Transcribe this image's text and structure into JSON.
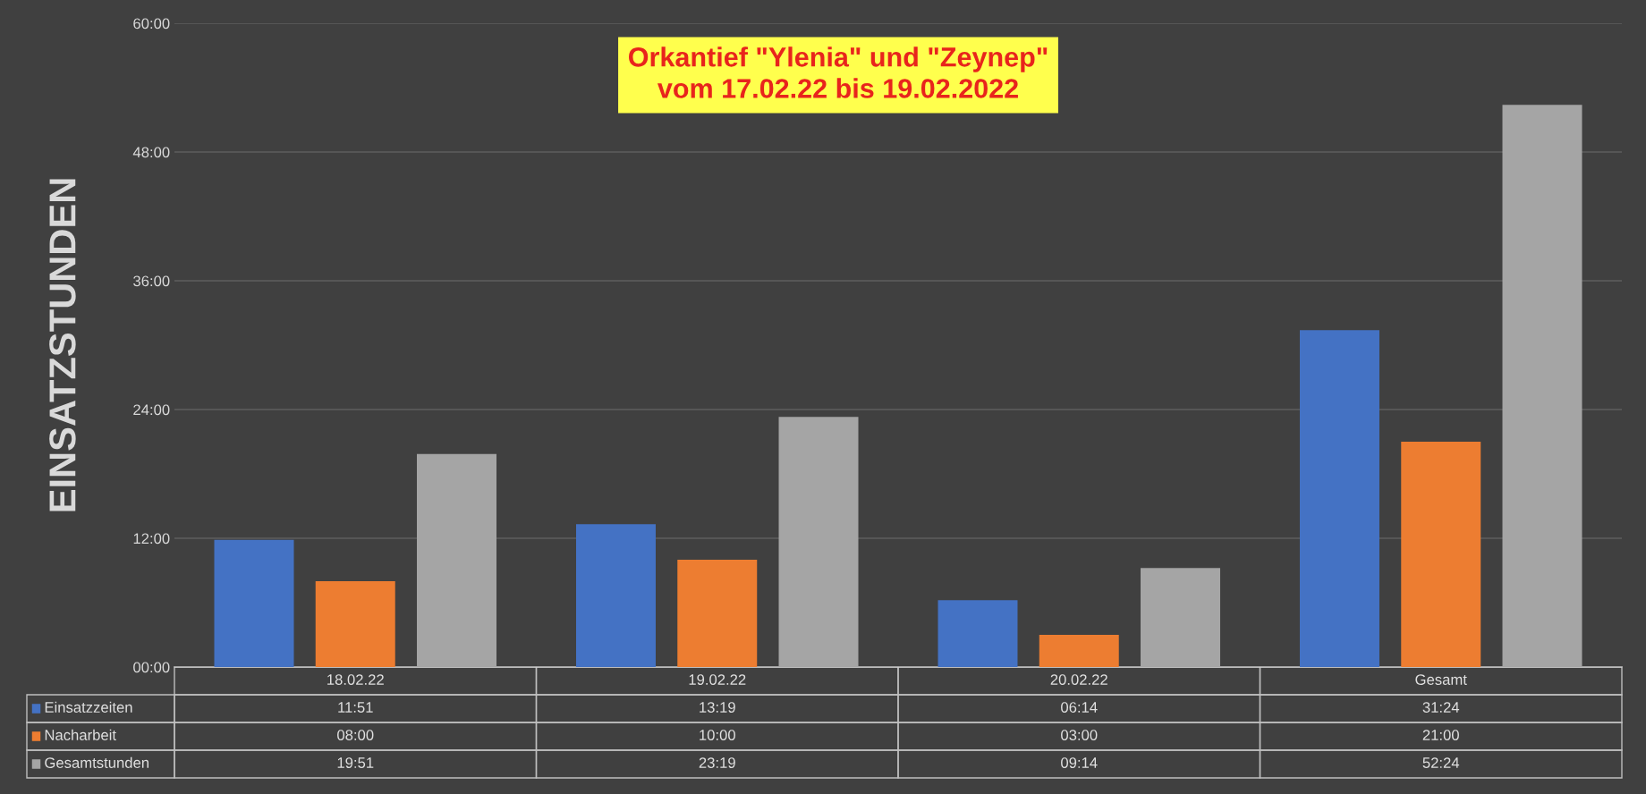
{
  "chart_data": {
    "type": "bar",
    "title": "Orkantief \"Ylenia\" und \"Zeynep\"\nvom 17.02.22 bis 19.02.2022",
    "ylabel": "EINSATZSTUNDEN",
    "categories": [
      "18.02.22",
      "19.02.22",
      "20.02.22",
      "Gesamt"
    ],
    "series": [
      {
        "name": "Einsatzzeiten",
        "color": "#4472c4",
        "values": [
          11.85,
          13.32,
          6.23,
          31.4
        ],
        "value_labels": [
          "11:51",
          "13:19",
          "06:14",
          "31:24"
        ]
      },
      {
        "name": "Nacharbeit",
        "color": "#ed7d31",
        "values": [
          8,
          10,
          3,
          21
        ],
        "value_labels": [
          "08:00",
          "10:00",
          "03:00",
          "21:00"
        ]
      },
      {
        "name": "Gesamtstunden",
        "color": "#a5a5a5",
        "values": [
          19.85,
          23.32,
          9.23,
          52.4
        ],
        "value_labels": [
          "19:51",
          "23:19",
          "09:14",
          "52:24"
        ]
      }
    ],
    "ylim": [
      0,
      60
    ],
    "yticks": [
      {
        "value": 0,
        "label": "00:00"
      },
      {
        "value": 12,
        "label": "12:00"
      },
      {
        "value": 24,
        "label": "24:00"
      },
      {
        "value": 36,
        "label": "36:00"
      },
      {
        "value": 48,
        "label": "48:00"
      },
      {
        "value": 60,
        "label": "60:00"
      }
    ],
    "grid": "y",
    "legend": "bottom"
  }
}
